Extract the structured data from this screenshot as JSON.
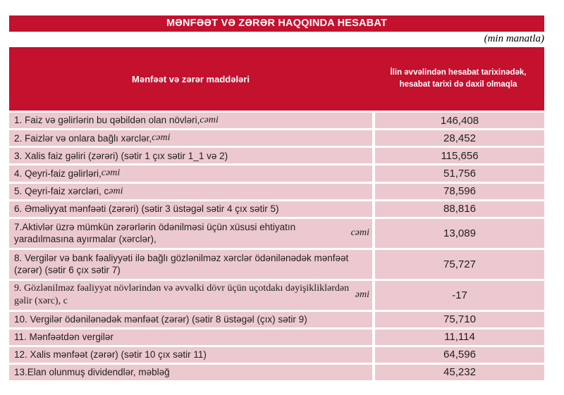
{
  "report": {
    "title": "MƏNFƏƏT VƏ ZƏRƏR HAQQINDA HESABAT",
    "unit_note": "(min manatla)",
    "colors": {
      "accent_red": "#C3112E",
      "row_pink": "#EBC9CE",
      "header_text": "#FFFFFF",
      "body_text": "#1F1F1F"
    },
    "table": {
      "col1_header": "Mənfəət və zərər maddələri",
      "col2_header": "İlin əvvəlindən hesabat tarixinədək, hesabat tarixi də daxil olmaqla",
      "rows": [
        {
          "label": "1. Faiz və gəlirlərin bu qəbildən olan növləri, ",
          "italic": "cəmi",
          "value": "146,408",
          "tall": false,
          "serif": false
        },
        {
          "label": "2. Faizlər və onlara bağlı xərclər, ",
          "italic": "cəmi",
          "value": "28,452",
          "tall": false,
          "serif": false
        },
        {
          "label": "3. Xalis faiz gəliri (zərəri) (sətir 1 çıx sətir 1_1 və 2)",
          "italic": "",
          "value": "115,656",
          "tall": false,
          "serif": false
        },
        {
          "label": "4. Qeyri-faiz gəlirləri, ",
          "italic": "cəmi",
          "value": "51,756",
          "tall": false,
          "serif": false
        },
        {
          "label": "5. Qeyri-faiz xərcləri, c",
          "italic": "əmi",
          "value": "78,596",
          "tall": false,
          "serif": false
        },
        {
          "label": "6. Əməliyyat mənfəəti (zərəri) (sətir 3 üstəgəl sətir 4 çıx sətir 5)",
          "italic": "",
          "value": "88,816",
          "tall": false,
          "serif": false
        },
        {
          "label": "7.Aktivlər üzrə mümkün zərərlərin ödənilməsi üçün xüsusi ehtiyatın yaradılmasına ayırmalar (xərclər), ",
          "italic": "cəmi",
          "value": "13,089",
          "tall": true,
          "serif": false
        },
        {
          "label": "8. Vergilər və bank fəaliyyəti ilə bağlı gözlənilməz xərclər ödənilənədək mənfəət (zərər) (sətir 6 çıx sətir 7)",
          "italic": "",
          "value": "75,727",
          "tall": true,
          "serif": false
        },
        {
          "label": "9. Gözlənilməz fəaliyyət növlərindən və əvvəlki dövr üçün uçotdakı dəyişikliklərdən gəlir (xərc), c",
          "italic": "əmi",
          "value": "-17",
          "tall": true,
          "serif": true
        },
        {
          "label": "10. Vergilər ödənilənədək mənfəət (zərər) (sətir 8 üstəgəl (çıx) sətir 9)",
          "italic": "",
          "value": "75,710",
          "tall": false,
          "serif": false
        },
        {
          "label": "11. Mənfəətdən vergilər",
          "italic": "",
          "value": "11,114",
          "tall": false,
          "serif": false
        },
        {
          "label": "12. Xalis mənfəət (zərər) (sətir 10 çıx sətir 11)",
          "italic": "",
          "value": "64,596",
          "tall": false,
          "serif": false
        },
        {
          "label": "13.Elan olunmuş dividendlər, məbləğ",
          "italic": "",
          "value": "45,232",
          "tall": false,
          "serif": false
        }
      ]
    }
  }
}
